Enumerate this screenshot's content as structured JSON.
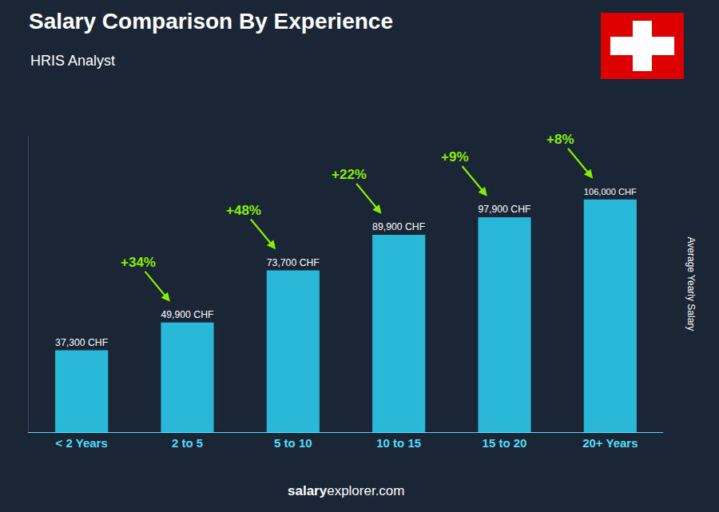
{
  "chart_data": {
    "type": "bar",
    "title": "Salary Comparison By Experience",
    "subtitle": "HRIS Analyst",
    "ylabel": "Average Yearly Salary",
    "categories": [
      "< 2 Years",
      "2 to 5",
      "5 to 10",
      "10 to 15",
      "15 to 20",
      "20+ Years"
    ],
    "values": [
      37300,
      49900,
      73700,
      89900,
      97900,
      106000
    ],
    "value_labels": [
      "37,300 CHF",
      "49,900 CHF",
      "73,700 CHF",
      "89,900 CHF",
      "97,900 CHF",
      "106,000 CHF"
    ],
    "data_labels": true,
    "color": "#2ab8d8",
    "annotations": [
      "+34%",
      "+48%",
      "+22%",
      "+9%",
      "+8%"
    ],
    "footer": [
      "salary",
      "explorer.com"
    ],
    "ylim": [
      0,
      135000
    ],
    "tick_labels": "x",
    "grid": false
  }
}
